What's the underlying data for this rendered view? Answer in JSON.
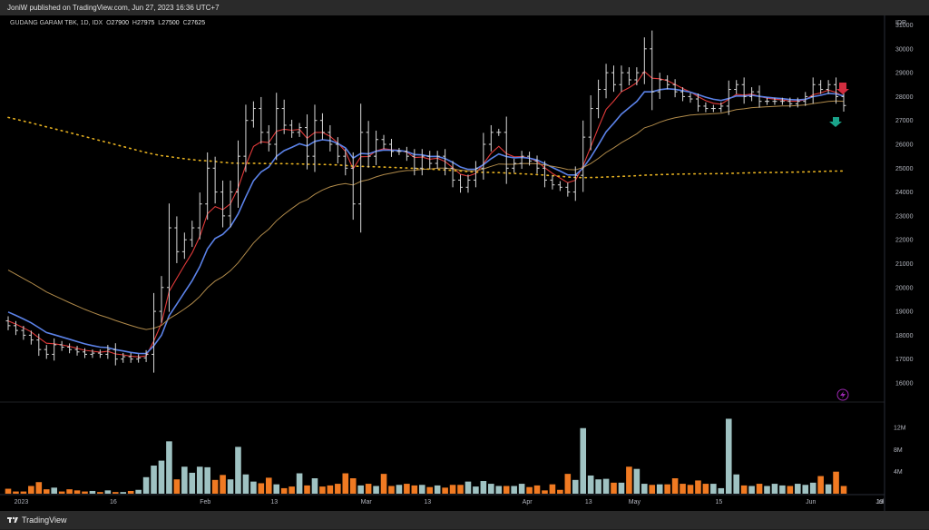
{
  "header": {
    "published": "JoniW published on TradingView.com, Jun 27, 2023 16:36 UTC+7"
  },
  "footer": {
    "brand": "TradingView"
  },
  "legend": {
    "symbol": "GUDANG GARAM TBK, 1D, IDX",
    "o_label": "O",
    "o": "27900",
    "h_label": "H",
    "h": "27975",
    "l_label": "L",
    "l": "27500",
    "c_label": "C",
    "c": "27625"
  },
  "currency": "IDR",
  "colors": {
    "bull_volume": "#9fc2c2",
    "bear_volume": "#f07a22",
    "ema_fast": "#e23a3a",
    "ema_mid": "#5b82e8",
    "ema_slow": "#b08a4a",
    "dotted_ma": "#e5b020",
    "bars": "#d8d8d8",
    "arrow_down": "#d12d3f",
    "arrow_up": "#1aa38a"
  },
  "chart_data": {
    "type": "ohlc",
    "x_axis_labels": [
      "2023",
      "16",
      "Feb",
      "13",
      "Mar",
      "13",
      "Apr",
      "13",
      "May",
      "15",
      "Jun",
      "19",
      "Jul"
    ],
    "y_axis": {
      "ticks": [
        "31000",
        "30000",
        "29000",
        "28000",
        "27000",
        "26000",
        "25000",
        "24000",
        "23000",
        "22000",
        "21000",
        "20000",
        "19000",
        "18000",
        "17000",
        "16000"
      ],
      "range": [
        15200,
        31400
      ]
    },
    "volume_axis": {
      "ticks": [
        "12M",
        "8M",
        "4M"
      ],
      "range": [
        0,
        14000000
      ]
    },
    "closes": [
      18400,
      18200,
      18000,
      17800,
      17400,
      17200,
      17600,
      17500,
      17400,
      17300,
      17200,
      17250,
      17200,
      17400,
      17000,
      17100,
      17000,
      17050,
      17200,
      19000,
      20000,
      22500,
      21500,
      22000,
      22500,
      23500,
      25000,
      24000,
      23000,
      24000,
      25500,
      27000,
      27500,
      26500,
      26000,
      27500,
      26800,
      26500,
      26700,
      25500,
      27000,
      26500,
      26000,
      25500,
      25000,
      23500,
      26500,
      25500,
      26200,
      26000,
      25700,
      25700,
      25500,
      25000,
      25500,
      25200,
      25500,
      25000,
      24500,
      24200,
      24500,
      25000,
      26000,
      26500,
      26500,
      25000,
      25200,
      25500,
      25300,
      25000,
      24500,
      24300,
      24200,
      24000,
      24700,
      26300,
      27500,
      28300,
      29000,
      28500,
      29000,
      28700,
      29000,
      30000,
      28200,
      28700,
      28500,
      28200,
      28000,
      27900,
      27600,
      27500,
      27500,
      27600,
      28300,
      28500,
      28000,
      28200,
      27800,
      27800,
      27800,
      27800,
      27700,
      27800,
      28000,
      28500,
      28300,
      28500,
      28000,
      27625
    ],
    "volumes": [
      900000,
      400000,
      400000,
      1400000,
      2100000,
      800000,
      1100000,
      400000,
      800000,
      600000,
      400000,
      500000,
      300000,
      600000,
      300000,
      300000,
      500000,
      700000,
      3000000,
      5100000,
      6000000,
      9500000,
      2600000,
      4900000,
      3800000,
      4900000,
      4800000,
      2500000,
      3400000,
      2600000,
      8500000,
      3500000,
      2200000,
      1900000,
      2900000,
      1700000,
      1000000,
      1300000,
      3700000,
      1500000,
      2800000,
      1300000,
      1500000,
      1800000,
      3700000,
      2800000,
      1500000,
      1800000,
      1400000,
      3600000,
      1400000,
      1600000,
      1800000,
      1500000,
      1600000,
      1200000,
      1500000,
      1100000,
      1600000,
      1600000,
      2200000,
      1300000,
      2300000,
      1800000,
      1400000,
      1400000,
      1400000,
      1800000,
      1200000,
      1500000,
      600000,
      1700000,
      700000,
      3600000,
      2500000,
      11900000,
      3300000,
      2600000,
      2700000,
      2000000,
      2000000,
      4900000,
      4500000,
      1800000,
      1600000,
      1700000,
      1700000,
      2800000,
      1800000,
      1600000,
      2400000,
      1800000,
      1800000,
      1000000,
      13600000,
      3500000,
      1500000,
      1400000,
      1800000,
      1400000,
      1800000,
      1500000,
      1400000,
      1800000,
      1600000,
      2000000,
      3200000,
      1700000,
      4000000,
      1400000
    ]
  }
}
